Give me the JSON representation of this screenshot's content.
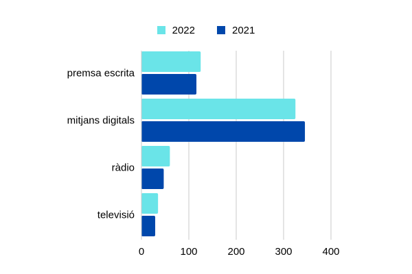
{
  "chart_data": {
    "type": "bar",
    "orientation": "horizontal",
    "categories": [
      "premsa escrita",
      "mitjans digitals",
      "ràdio",
      "televisió"
    ],
    "series": [
      {
        "name": "2022",
        "color": "#6ae4e8",
        "values": [
          125,
          325,
          60,
          35
        ]
      },
      {
        "name": "2021",
        "color": "#0047ab",
        "values": [
          116,
          345,
          47,
          29
        ]
      }
    ],
    "xlim": [
      0,
      400
    ],
    "xticks": [
      0,
      100,
      200,
      300,
      400
    ],
    "grid": true,
    "legend_position": "top-center",
    "title": "",
    "xlabel": "",
    "ylabel": ""
  }
}
